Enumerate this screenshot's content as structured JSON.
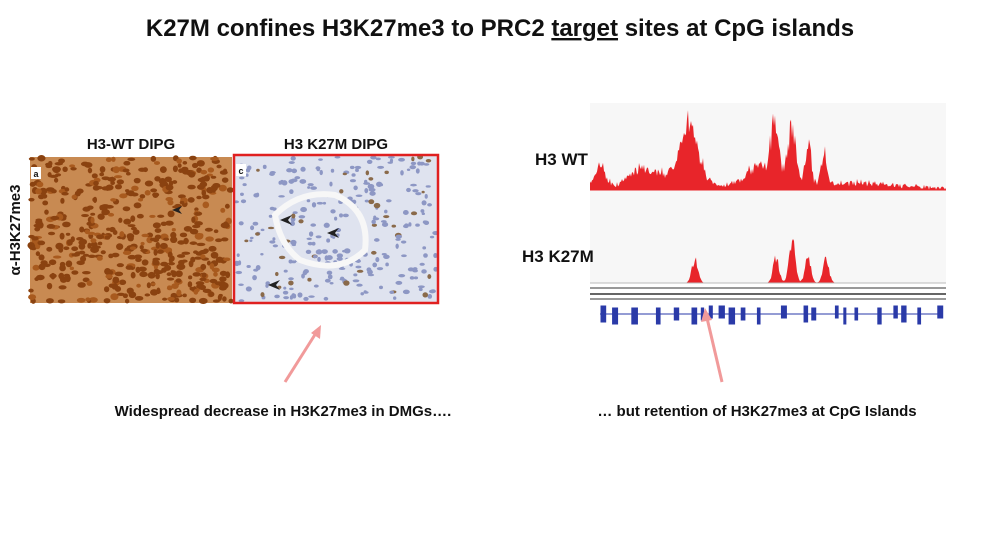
{
  "title": {
    "before": "K27M confines H3K27me3 to PRC2 ",
    "underlined": "target",
    "after": " sites at CpG islands"
  },
  "left_panel": {
    "y_label": "α-H3K27me3",
    "images": [
      {
        "heading": "H3-WT DIPG",
        "letter": "a"
      },
      {
        "heading": "H3 K27M DIPG",
        "letter": "c"
      }
    ],
    "caption": "Widespread decrease in H3K27me3 in DMGs…."
  },
  "right_panel": {
    "tracks": [
      {
        "label": "H3 WT"
      },
      {
        "label": "H3 K27M"
      }
    ],
    "caption": "… but retention of H3K27me3 at CpG Islands"
  }
}
